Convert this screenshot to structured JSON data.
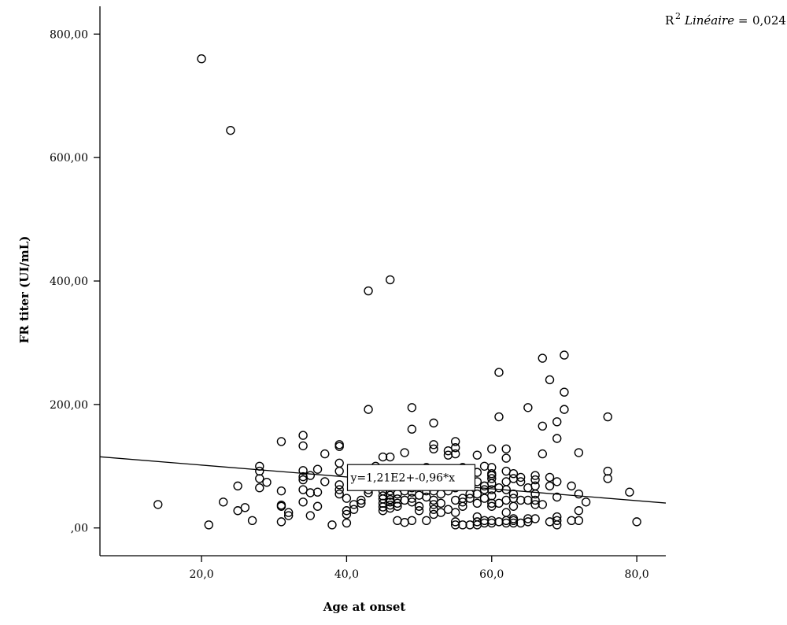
{
  "r2_label": {
    "prefix": "R",
    "sup": "2",
    "text": "Linéaire =",
    "value": "0,024"
  },
  "chart_data": {
    "type": "scatter",
    "xlabel": "Age at onset",
    "ylabel": "FR titer (UI/mL)",
    "xlim": [
      6,
      84
    ],
    "ylim": [
      -45,
      845
    ],
    "x_ticks": [
      {
        "value": 20,
        "label": "20,0"
      },
      {
        "value": 40,
        "label": "40,0"
      },
      {
        "value": 60,
        "label": "60,0"
      },
      {
        "value": 80,
        "label": "80,0"
      }
    ],
    "y_ticks": [
      {
        "value": 0,
        "label": ",00"
      },
      {
        "value": 200,
        "label": "200,00"
      },
      {
        "value": 400,
        "label": "400,00"
      },
      {
        "value": 600,
        "label": "600,00"
      },
      {
        "value": 800,
        "label": "800,00"
      }
    ],
    "fit_line": {
      "intercept": 121,
      "slope": -0.96,
      "label": "y=1,21E2+-0,96*x",
      "label_x": 45
    },
    "points": [
      [
        20,
        760
      ],
      [
        24,
        644
      ],
      [
        43,
        384
      ],
      [
        46,
        402
      ],
      [
        14,
        38
      ],
      [
        21,
        5
      ],
      [
        23,
        42
      ],
      [
        25,
        28
      ],
      [
        25,
        68
      ],
      [
        26,
        33
      ],
      [
        27,
        12
      ],
      [
        28,
        65
      ],
      [
        28,
        80
      ],
      [
        28,
        92
      ],
      [
        28,
        100
      ],
      [
        29,
        74
      ],
      [
        31,
        140
      ],
      [
        31,
        60
      ],
      [
        31,
        37
      ],
      [
        31,
        35
      ],
      [
        31,
        10
      ],
      [
        32,
        25
      ],
      [
        32,
        20
      ],
      [
        34,
        150
      ],
      [
        34,
        133
      ],
      [
        34,
        93
      ],
      [
        34,
        83
      ],
      [
        34,
        78
      ],
      [
        34,
        62
      ],
      [
        34,
        42
      ],
      [
        35,
        85
      ],
      [
        35,
        57
      ],
      [
        35,
        20
      ],
      [
        36,
        95
      ],
      [
        36,
        58
      ],
      [
        36,
        35
      ],
      [
        37,
        120
      ],
      [
        37,
        75
      ],
      [
        38,
        5
      ],
      [
        39,
        135
      ],
      [
        39,
        132
      ],
      [
        39,
        105
      ],
      [
        39,
        92
      ],
      [
        39,
        70
      ],
      [
        39,
        62
      ],
      [
        39,
        55
      ],
      [
        40,
        48
      ],
      [
        40,
        28
      ],
      [
        40,
        22
      ],
      [
        40,
        8
      ],
      [
        41,
        38
      ],
      [
        41,
        30
      ],
      [
        42,
        45
      ],
      [
        42,
        40
      ],
      [
        43,
        192
      ],
      [
        43,
        62
      ],
      [
        43,
        57
      ],
      [
        44,
        100
      ],
      [
        44,
        95
      ],
      [
        44,
        88
      ],
      [
        44,
        72
      ],
      [
        45,
        115
      ],
      [
        45,
        60
      ],
      [
        45,
        52
      ],
      [
        45,
        47
      ],
      [
        45,
        40
      ],
      [
        45,
        34
      ],
      [
        45,
        28
      ],
      [
        46,
        115
      ],
      [
        46,
        60
      ],
      [
        46,
        53
      ],
      [
        46,
        46
      ],
      [
        46,
        42
      ],
      [
        46,
        37
      ],
      [
        46,
        32
      ],
      [
        47,
        68
      ],
      [
        47,
        55
      ],
      [
        47,
        47
      ],
      [
        47,
        40
      ],
      [
        47,
        35
      ],
      [
        47,
        12
      ],
      [
        48,
        122
      ],
      [
        48,
        75
      ],
      [
        48,
        60
      ],
      [
        48,
        45
      ],
      [
        48,
        9
      ],
      [
        49,
        195
      ],
      [
        49,
        160
      ],
      [
        49,
        65
      ],
      [
        49,
        58
      ],
      [
        49,
        48
      ],
      [
        49,
        42
      ],
      [
        49,
        12
      ],
      [
        50,
        85
      ],
      [
        50,
        70
      ],
      [
        50,
        53
      ],
      [
        50,
        35
      ],
      [
        50,
        28
      ],
      [
        51,
        98
      ],
      [
        51,
        88
      ],
      [
        51,
        77
      ],
      [
        51,
        60
      ],
      [
        51,
        50
      ],
      [
        51,
        12
      ],
      [
        52,
        170
      ],
      [
        52,
        135
      ],
      [
        52,
        128
      ],
      [
        52,
        80
      ],
      [
        52,
        60
      ],
      [
        52,
        45
      ],
      [
        52,
        38
      ],
      [
        52,
        30
      ],
      [
        52,
        22
      ],
      [
        53,
        70
      ],
      [
        53,
        55
      ],
      [
        53,
        40
      ],
      [
        53,
        25
      ],
      [
        54,
        125
      ],
      [
        54,
        118
      ],
      [
        54,
        95
      ],
      [
        54,
        78
      ],
      [
        54,
        60
      ],
      [
        54,
        30
      ],
      [
        55,
        140
      ],
      [
        55,
        130
      ],
      [
        55,
        120
      ],
      [
        55,
        85
      ],
      [
        55,
        80
      ],
      [
        55,
        65
      ],
      [
        55,
        45
      ],
      [
        55,
        25
      ],
      [
        55,
        10
      ],
      [
        55,
        5
      ],
      [
        56,
        98
      ],
      [
        56,
        83
      ],
      [
        56,
        72
      ],
      [
        56,
        48
      ],
      [
        56,
        42
      ],
      [
        56,
        35
      ],
      [
        56,
        5
      ],
      [
        57,
        92
      ],
      [
        57,
        55
      ],
      [
        57,
        48
      ],
      [
        57,
        5
      ],
      [
        58,
        118
      ],
      [
        58,
        90
      ],
      [
        58,
        75
      ],
      [
        58,
        55
      ],
      [
        58,
        40
      ],
      [
        58,
        18
      ],
      [
        58,
        10
      ],
      [
        58,
        5
      ],
      [
        59,
        100
      ],
      [
        59,
        68
      ],
      [
        59,
        62
      ],
      [
        59,
        48
      ],
      [
        59,
        12
      ],
      [
        59,
        8
      ],
      [
        60,
        128
      ],
      [
        60,
        98
      ],
      [
        60,
        88
      ],
      [
        60,
        85
      ],
      [
        60,
        80
      ],
      [
        60,
        72
      ],
      [
        60,
        62
      ],
      [
        60,
        52
      ],
      [
        60,
        40
      ],
      [
        60,
        35
      ],
      [
        60,
        12
      ],
      [
        60,
        8
      ],
      [
        61,
        252
      ],
      [
        61,
        180
      ],
      [
        61,
        65
      ],
      [
        61,
        40
      ],
      [
        61,
        10
      ],
      [
        62,
        128
      ],
      [
        62,
        113
      ],
      [
        62,
        92
      ],
      [
        62,
        75
      ],
      [
        62,
        62
      ],
      [
        62,
        45
      ],
      [
        62,
        25
      ],
      [
        62,
        12
      ],
      [
        62,
        8
      ],
      [
        63,
        88
      ],
      [
        63,
        80
      ],
      [
        63,
        55
      ],
      [
        63,
        48
      ],
      [
        63,
        35
      ],
      [
        63,
        15
      ],
      [
        63,
        12
      ],
      [
        63,
        8
      ],
      [
        64,
        82
      ],
      [
        64,
        75
      ],
      [
        64,
        45
      ],
      [
        64,
        8
      ],
      [
        65,
        195
      ],
      [
        65,
        65
      ],
      [
        65,
        45
      ],
      [
        65,
        15
      ],
      [
        65,
        10
      ],
      [
        66,
        85
      ],
      [
        66,
        78
      ],
      [
        66,
        68
      ],
      [
        66,
        55
      ],
      [
        66,
        45
      ],
      [
        66,
        38
      ],
      [
        66,
        15
      ],
      [
        67,
        275
      ],
      [
        67,
        165
      ],
      [
        67,
        120
      ],
      [
        67,
        38
      ],
      [
        68,
        240
      ],
      [
        68,
        82
      ],
      [
        68,
        68
      ],
      [
        68,
        10
      ],
      [
        69,
        172
      ],
      [
        69,
        145
      ],
      [
        69,
        75
      ],
      [
        69,
        50
      ],
      [
        69,
        18
      ],
      [
        69,
        12
      ],
      [
        69,
        5
      ],
      [
        70,
        280
      ],
      [
        70,
        220
      ],
      [
        70,
        192
      ],
      [
        71,
        68
      ],
      [
        71,
        12
      ],
      [
        72,
        122
      ],
      [
        72,
        55
      ],
      [
        72,
        28
      ],
      [
        72,
        12
      ],
      [
        73,
        42
      ],
      [
        76,
        180
      ],
      [
        76,
        92
      ],
      [
        76,
        80
      ],
      [
        79,
        58
      ],
      [
        80,
        10
      ]
    ]
  }
}
